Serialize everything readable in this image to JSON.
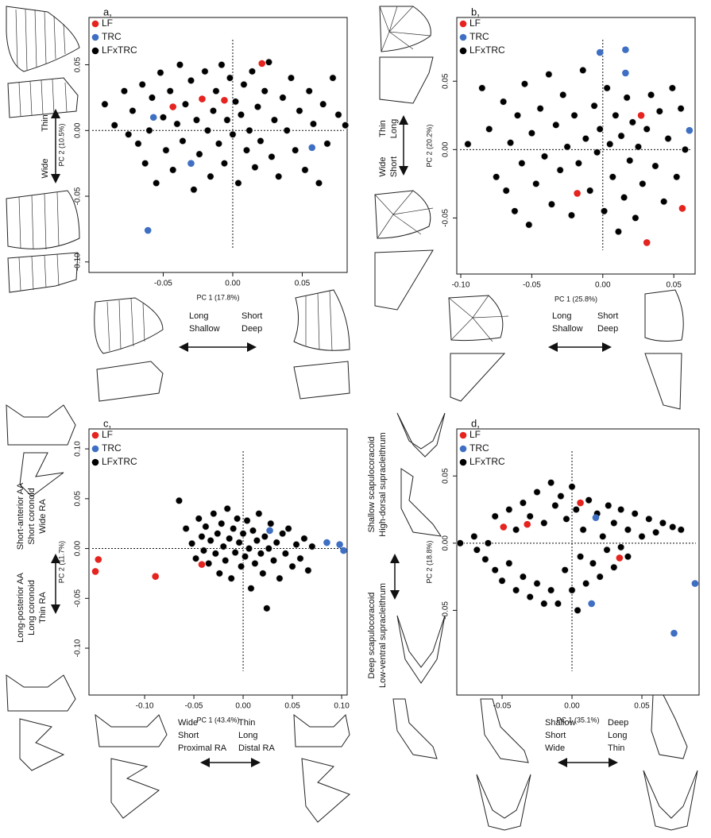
{
  "chart_data": [
    {
      "type": "scatter",
      "panel_label": "a,",
      "xlabel": "PC 1 (17.8%)",
      "ylabel": "PC 2 (10.5%)",
      "xlim": [
        -0.1034,
        0.0823
      ],
      "ylim": [
        -0.108,
        0.086
      ],
      "xticks": [
        -0.05,
        {
          "value": 0,
          "label": "0.00"
        },
        0.05
      ],
      "yticks": [
        {
          "value": -0.1,
          "label": "-0.10"
        },
        -0.05,
        {
          "value": 0,
          "label": "0.00"
        },
        0.05
      ],
      "reference_lines": {
        "x": 0,
        "y": 0
      },
      "legend": "top-left",
      "annotations": [
        {
          "lines": [
            "Thin"
          ]
        },
        {
          "lines": [
            "Wide"
          ]
        },
        {
          "lines": [
            "Long",
            "Shallow"
          ]
        },
        {
          "lines": [
            "Short",
            "Deep"
          ]
        }
      ],
      "series": [
        {
          "name": "LF",
          "color": "#e5231f",
          "x": [
            -0.043,
            -0.022,
            -0.006,
            0.021
          ],
          "values": [
            0.018,
            0.024,
            0.023,
            0.051
          ]
        },
        {
          "name": "TRC",
          "color": "#3e6fc3",
          "x": [
            -0.057,
            -0.03,
            -0.061,
            0.057
          ],
          "values": [
            0.01,
            -0.025,
            -0.076,
            -0.013
          ]
        },
        {
          "name": "LFxTRC",
          "color": "#000000",
          "x": [
            -0.092,
            -0.085,
            -0.078,
            -0.075,
            -0.072,
            -0.068,
            -0.065,
            -0.063,
            -0.06,
            -0.058,
            -0.055,
            -0.052,
            -0.05,
            -0.048,
            -0.045,
            -0.043,
            -0.04,
            -0.038,
            -0.036,
            -0.034,
            -0.03,
            -0.028,
            -0.026,
            -0.024,
            -0.02,
            -0.018,
            -0.016,
            -0.014,
            -0.012,
            -0.01,
            -0.008,
            -0.006,
            -0.004,
            -0.002,
            0.0,
            0.002,
            0.004,
            0.006,
            0.008,
            0.01,
            0.012,
            0.014,
            0.016,
            0.018,
            0.02,
            0.023,
            0.026,
            0.028,
            0.03,
            0.033,
            0.036,
            0.039,
            0.042,
            0.045,
            0.048,
            0.052,
            0.055,
            0.058,
            0.062,
            0.065,
            0.068,
            0.072,
            0.076,
            0.081
          ],
          "values": [
            0.02,
            0.004,
            0.03,
            -0.003,
            0.015,
            -0.01,
            0.035,
            -0.025,
            0.0,
            0.025,
            -0.04,
            0.044,
            0.01,
            -0.015,
            0.03,
            -0.03,
            0.005,
            0.05,
            -0.008,
            0.02,
            0.038,
            -0.045,
            0.008,
            -0.018,
            0.045,
            0.0,
            -0.035,
            0.015,
            0.03,
            -0.01,
            0.05,
            -0.025,
            0.008,
            0.04,
            -0.003,
            0.022,
            -0.04,
            0.012,
            0.035,
            -0.015,
            0.0,
            0.045,
            -0.028,
            0.018,
            -0.008,
            0.03,
            0.052,
            -0.02,
            0.008,
            -0.035,
            0.025,
            0.0,
            0.04,
            -0.015,
            0.015,
            -0.03,
            0.03,
            0.005,
            -0.04,
            0.02,
            -0.01,
            0.04,
            0.012,
            0.004
          ]
        }
      ]
    },
    {
      "type": "scatter",
      "panel_label": "b,",
      "xlabel": "PC 1 (25.8%)",
      "ylabel": "PC 2 (20.2%)",
      "xlim": [
        -0.1028,
        0.065
      ],
      "ylim": [
        -0.091,
        0.0966
      ],
      "xticks": [
        {
          "value": -0.1,
          "label": "-0.10"
        },
        -0.05,
        {
          "value": 0,
          "label": "0.00"
        },
        0.05
      ],
      "yticks": [
        -0.05,
        {
          "value": 0,
          "label": "0.00"
        },
        0.05
      ],
      "reference_lines": {
        "x": 0,
        "y": 0
      },
      "legend": "top-left",
      "annotations": [
        {
          "lines": [
            "Thin",
            "Long"
          ]
        },
        {
          "lines": [
            "Wide",
            "Short"
          ]
        },
        {
          "lines": [
            "Long",
            "Shallow"
          ]
        },
        {
          "lines": [
            "Short",
            "Deep"
          ]
        }
      ],
      "series": [
        {
          "name": "LF",
          "color": "#e5231f",
          "x": [
            0.027,
            -0.018,
            0.056,
            0.031
          ],
          "values": [
            0.025,
            -0.032,
            -0.043,
            -0.068
          ]
        },
        {
          "name": "TRC",
          "color": "#3e6fc3",
          "x": [
            -0.002,
            0.016,
            0.016,
            0.061
          ],
          "values": [
            0.071,
            0.073,
            0.056,
            0.014
          ]
        },
        {
          "name": "LFxTRC",
          "color": "#000000",
          "x": [
            -0.095,
            -0.085,
            -0.08,
            -0.075,
            -0.07,
            -0.068,
            -0.065,
            -0.062,
            -0.06,
            -0.057,
            -0.055,
            -0.052,
            -0.05,
            -0.047,
            -0.044,
            -0.041,
            -0.038,
            -0.036,
            -0.033,
            -0.03,
            -0.028,
            -0.025,
            -0.022,
            -0.02,
            -0.017,
            -0.014,
            -0.012,
            -0.009,
            -0.006,
            -0.004,
            -0.002,
            0.001,
            0.003,
            0.005,
            0.007,
            0.009,
            0.011,
            0.013,
            0.015,
            0.017,
            0.019,
            0.021,
            0.023,
            0.025,
            0.028,
            0.031,
            0.034,
            0.037,
            0.04,
            0.043,
            0.046,
            0.049,
            0.052,
            0.055,
            0.058
          ],
          "values": [
            0.004,
            0.045,
            0.015,
            -0.02,
            0.035,
            -0.03,
            0.005,
            -0.045,
            0.025,
            -0.01,
            0.048,
            -0.055,
            0.012,
            -0.025,
            0.03,
            -0.005,
            0.055,
            -0.04,
            0.018,
            -0.015,
            0.04,
            0.002,
            -0.048,
            0.025,
            -0.01,
            0.058,
            0.008,
            -0.03,
            0.032,
            -0.002,
            0.015,
            -0.045,
            0.045,
            0.004,
            -0.02,
            0.025,
            -0.06,
            0.01,
            -0.035,
            0.038,
            -0.008,
            0.02,
            -0.05,
            0.002,
            -0.025,
            0.015,
            0.04,
            -0.012,
            0.028,
            -0.038,
            0.008,
            0.045,
            -0.02,
            0.03,
            0.0
          ]
        }
      ]
    },
    {
      "type": "scatter",
      "panel_label": "c,",
      "xlabel": "PC 1 (43.4%)",
      "ylabel": "PC 2 (11.7%)",
      "xlim": [
        -0.1565,
        0.1056
      ],
      "ylim": [
        -0.147,
        0.12
      ],
      "xticks": [
        {
          "value": -0.1,
          "label": "-0.10"
        },
        -0.05,
        {
          "value": 0,
          "label": "0.00"
        },
        0.05,
        {
          "value": 0.1,
          "label": "0.10"
        }
      ],
      "yticks": [
        {
          "value": -0.1,
          "label": "-0.10"
        },
        -0.05,
        {
          "value": 0,
          "label": "0.00"
        },
        0.05,
        {
          "value": 0.1,
          "label": "0.10"
        }
      ],
      "reference_lines": {
        "x": 0,
        "y": 0
      },
      "legend": "top-left",
      "annotations": [
        {
          "lines": [
            "Short-anterior AA",
            "Short coronoid",
            "Wide RA"
          ]
        },
        {
          "lines": [
            "Long-posterior AA",
            "Long coronoid",
            "Thin RA"
          ]
        },
        {
          "lines": [
            "Wide",
            "Short",
            "Proximal RA"
          ]
        },
        {
          "lines": [
            "Thin",
            "Long",
            "Distal RA"
          ]
        }
      ],
      "series": [
        {
          "name": "LF",
          "color": "#e5231f",
          "x": [
            -0.147,
            -0.15,
            -0.089,
            -0.042
          ],
          "values": [
            -0.011,
            -0.023,
            -0.028,
            -0.016
          ]
        },
        {
          "name": "TRC",
          "color": "#3e6fc3",
          "x": [
            0.027,
            0.085,
            0.098,
            0.102
          ],
          "values": [
            0.018,
            0.006,
            0.004,
            -0.002
          ]
        },
        {
          "name": "LFxTRC",
          "color": "#000000",
          "x": [
            -0.065,
            -0.058,
            -0.052,
            -0.048,
            -0.045,
            -0.042,
            -0.04,
            -0.038,
            -0.035,
            -0.033,
            -0.03,
            -0.028,
            -0.026,
            -0.024,
            -0.022,
            -0.02,
            -0.018,
            -0.016,
            -0.014,
            -0.012,
            -0.01,
            -0.008,
            -0.006,
            -0.004,
            -0.002,
            0.0,
            0.002,
            0.004,
            0.006,
            0.008,
            0.01,
            0.012,
            0.014,
            0.016,
            0.018,
            0.02,
            0.022,
            0.024,
            0.026,
            0.028,
            0.031,
            0.034,
            0.037,
            0.04,
            0.043,
            0.046,
            0.05,
            0.054,
            0.058,
            0.062,
            0.066,
            0.07
          ],
          "values": [
            0.048,
            0.02,
            0.005,
            -0.01,
            0.03,
            0.012,
            -0.002,
            0.022,
            -0.015,
            0.008,
            0.035,
            -0.005,
            0.015,
            -0.025,
            0.025,
            0.002,
            -0.012,
            0.04,
            0.01,
            -0.03,
            0.02,
            -0.004,
            0.03,
            0.006,
            -0.018,
            0.015,
            -0.008,
            0.028,
            0.0,
            -0.04,
            0.018,
            -0.015,
            0.008,
            0.035,
            -0.005,
            -0.025,
            0.012,
            -0.06,
            0.0,
            0.025,
            -0.012,
            0.006,
            -0.03,
            0.015,
            -0.005,
            0.02,
            -0.018,
            0.004,
            -0.01,
            0.01,
            -0.022,
            0.002
          ]
        }
      ]
    },
    {
      "type": "scatter",
      "panel_label": "d,",
      "xlabel": "PC 1 (35.1%)",
      "ylabel": "PC 2 (18.8%)",
      "xlim": [
        -0.0824,
        0.0909
      ],
      "ylim": [
        -0.113,
        0.085
      ],
      "xticks": [
        -0.05,
        {
          "value": 0,
          "label": "0.00"
        },
        0.05
      ],
      "yticks": [
        -0.05,
        {
          "value": 0,
          "label": "0.00"
        },
        0.05
      ],
      "reference_lines": {
        "x": 0,
        "y": 0
      },
      "legend": "top-left",
      "annotations": [
        {
          "lines": [
            "Shallow scapulocoracoid",
            "High-dorsal supracleithrum"
          ]
        },
        {
          "lines": [
            "Deep scapulocoracoid",
            "Low-ventral supracleithrum"
          ]
        },
        {
          "lines": [
            "Shallow",
            "Short",
            "Wide"
          ]
        },
        {
          "lines": [
            "Deep",
            "Long",
            "Thin"
          ]
        }
      ],
      "series": [
        {
          "name": "LF",
          "color": "#e5231f",
          "x": [
            -0.049,
            -0.032,
            0.006,
            0.034
          ],
          "values": [
            0.012,
            0.014,
            0.03,
            -0.011
          ]
        },
        {
          "name": "TRC",
          "color": "#3e6fc3",
          "x": [
            0.017,
            0.014,
            0.073,
            0.088
          ],
          "values": [
            0.019,
            -0.045,
            -0.067,
            -0.03
          ]
        },
        {
          "name": "LFxTRC",
          "color": "#000000",
          "x": [
            -0.08,
            -0.07,
            -0.06,
            -0.055,
            -0.045,
            -0.04,
            -0.035,
            -0.03,
            -0.025,
            -0.02,
            -0.015,
            -0.012,
            -0.008,
            -0.004,
            0.0,
            0.003,
            0.008,
            0.012,
            0.018,
            0.022,
            0.026,
            0.03,
            0.035,
            0.04,
            0.045,
            0.05,
            0.055,
            0.06,
            0.065,
            0.072,
            0.078,
            -0.068,
            -0.062,
            -0.055,
            -0.05,
            -0.045,
            -0.04,
            -0.035,
            -0.03,
            -0.025,
            -0.02,
            -0.015,
            -0.01,
            -0.005,
            0.0,
            0.004,
            0.006,
            0.01,
            0.015,
            0.02,
            0.025,
            0.03,
            0.035,
            0.04
          ],
          "values": [
            0.0,
            0.005,
            0.0,
            0.02,
            0.025,
            0.01,
            0.03,
            0.02,
            0.038,
            0.015,
            0.045,
            0.028,
            0.035,
            0.018,
            0.042,
            0.025,
            0.01,
            0.032,
            0.022,
            0.005,
            0.028,
            0.015,
            0.025,
            0.01,
            0.022,
            0.005,
            0.018,
            0.008,
            0.015,
            0.012,
            0.01,
            -0.005,
            -0.012,
            -0.02,
            -0.028,
            -0.015,
            -0.035,
            -0.025,
            -0.04,
            -0.03,
            -0.045,
            -0.035,
            -0.045,
            -0.02,
            -0.035,
            -0.05,
            -0.01,
            -0.03,
            -0.015,
            -0.025,
            -0.005,
            -0.018,
            -0.003,
            -0.01
          ]
        }
      ]
    }
  ]
}
